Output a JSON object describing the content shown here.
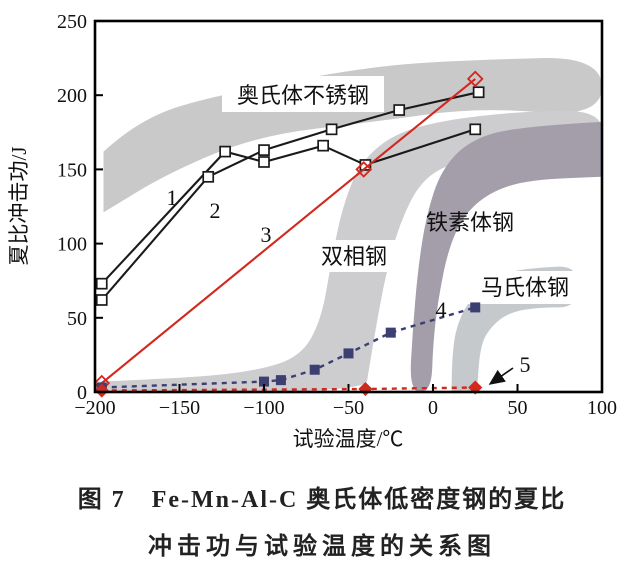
{
  "figure": {
    "caption_prefix": "图 7",
    "caption_line1": "Fe-Mn-Al-C 奥氏体低密度钢的夏比",
    "caption_line2": "冲击功与试验温度的关系图"
  },
  "colors": {
    "curve_black": "#1a1a1a",
    "curve_red": "#d2281e",
    "curve_navy": "#3b3f72",
    "band_light_gray": "#c9c9c9",
    "band_mid_gray": "#cdccce",
    "band_dark_gray": "#a49eaa",
    "band_martensite_gray": "#c6c9cb"
  },
  "chart_data": {
    "type": "line",
    "title": "",
    "xlabel": "试验温度/℃",
    "ylabel": "夏比冲击功/J",
    "xlim": [
      -200,
      100
    ],
    "ylim": [
      0,
      250
    ],
    "x_ticks": [
      -200,
      -150,
      -100,
      -50,
      0,
      50,
      100
    ],
    "y_ticks": [
      0,
      50,
      100,
      150,
      200,
      250
    ],
    "grid": false,
    "legend": "none",
    "series": [
      {
        "label": "1",
        "marker": "open-square",
        "line": "solid",
        "color": "#1a1a1a",
        "points": [
          [
            -196,
            73
          ],
          [
            -123,
            162
          ],
          [
            -100,
            155
          ],
          [
            -65,
            166
          ],
          [
            -40,
            153
          ],
          [
            25,
            177
          ]
        ]
      },
      {
        "label": "2",
        "marker": "open-square",
        "line": "solid",
        "color": "#1a1a1a",
        "points": [
          [
            -196,
            62
          ],
          [
            -133,
            145
          ],
          [
            -100,
            163
          ],
          [
            -60,
            177
          ],
          [
            -20,
            190
          ],
          [
            27,
            202
          ]
        ]
      },
      {
        "label": "3",
        "marker": "open-diamond",
        "line": "solid",
        "color": "#d2281e",
        "points": [
          [
            -196,
            6
          ],
          [
            -41,
            150
          ],
          [
            25,
            211
          ]
        ]
      },
      {
        "label": "4",
        "marker": "filled-square",
        "line": "dashed",
        "color": "#3b3f72",
        "points": [
          [
            -196,
            3
          ],
          [
            -100,
            7
          ],
          [
            -90,
            8
          ],
          [
            -70,
            15
          ],
          [
            -50,
            26
          ],
          [
            -25,
            40
          ],
          [
            25,
            57
          ]
        ]
      },
      {
        "label": "5",
        "marker": "filled-diamond",
        "line": "dashed",
        "color": "#d2281e",
        "points": [
          [
            -196,
            1
          ],
          [
            -40,
            2
          ],
          [
            25,
            3
          ]
        ]
      }
    ],
    "bands": [
      {
        "name": "austenitic-stainless-steel",
        "label": "奥氏体不锈钢",
        "color": "#c9c9c9",
        "polygon": [
          [
            -195,
            162
          ],
          [
            -173,
            185
          ],
          [
            -124,
            201
          ],
          [
            -35,
            220
          ],
          [
            28,
            224
          ],
          [
            100,
            226
          ],
          [
            100,
            185
          ],
          [
            28,
            192
          ],
          [
            -35,
            182
          ],
          [
            -103,
            173
          ],
          [
            -156,
            148
          ],
          [
            -195,
            121
          ]
        ]
      },
      {
        "name": "duplex-steel",
        "label": "双相钢",
        "color": "#cdccce",
        "polygon": [
          [
            -200,
            7
          ],
          [
            -150,
            9
          ],
          [
            -105,
            14
          ],
          [
            -78,
            24
          ],
          [
            -66,
            49
          ],
          [
            -60,
            89
          ],
          [
            -54,
            123
          ],
          [
            -44,
            153
          ],
          [
            -25,
            173
          ],
          [
            5,
            183
          ],
          [
            51,
            189
          ],
          [
            100,
            190
          ],
          [
            100,
            163
          ],
          [
            51,
            162
          ],
          [
            14,
            156
          ],
          [
            -7,
            143
          ],
          [
            -20,
            113
          ],
          [
            -28,
            79
          ],
          [
            -34,
            42
          ],
          [
            -38,
            15
          ],
          [
            -40,
            0
          ],
          [
            -200,
            0
          ]
        ]
      },
      {
        "name": "martensitic-steel",
        "label": "马氏体钢",
        "color": "#c6c9cb",
        "polygon": [
          [
            11,
            0
          ],
          [
            11,
            28
          ],
          [
            16,
            52
          ],
          [
            27,
            69
          ],
          [
            43,
            81
          ],
          [
            63,
            84
          ],
          [
            86,
            85
          ],
          [
            86,
            57
          ],
          [
            63,
            57
          ],
          [
            46,
            54
          ],
          [
            35,
            45
          ],
          [
            28,
            32
          ],
          [
            26,
            0
          ]
        ]
      },
      {
        "name": "ferritic-steel",
        "label": "铁素体钢",
        "color": "#a49eaa",
        "polygon": [
          [
            100,
            182
          ],
          [
            51,
            179
          ],
          [
            22,
            170
          ],
          [
            5,
            150
          ],
          [
            -4,
            119
          ],
          [
            -9,
            82
          ],
          [
            -12,
            42
          ],
          [
            -14,
            0
          ],
          [
            -1,
            0
          ],
          [
            0,
            32
          ],
          [
            3,
            62
          ],
          [
            9,
            96
          ],
          [
            18,
            119
          ],
          [
            34,
            135
          ],
          [
            57,
            143
          ],
          [
            100,
            145
          ]
        ]
      }
    ]
  }
}
